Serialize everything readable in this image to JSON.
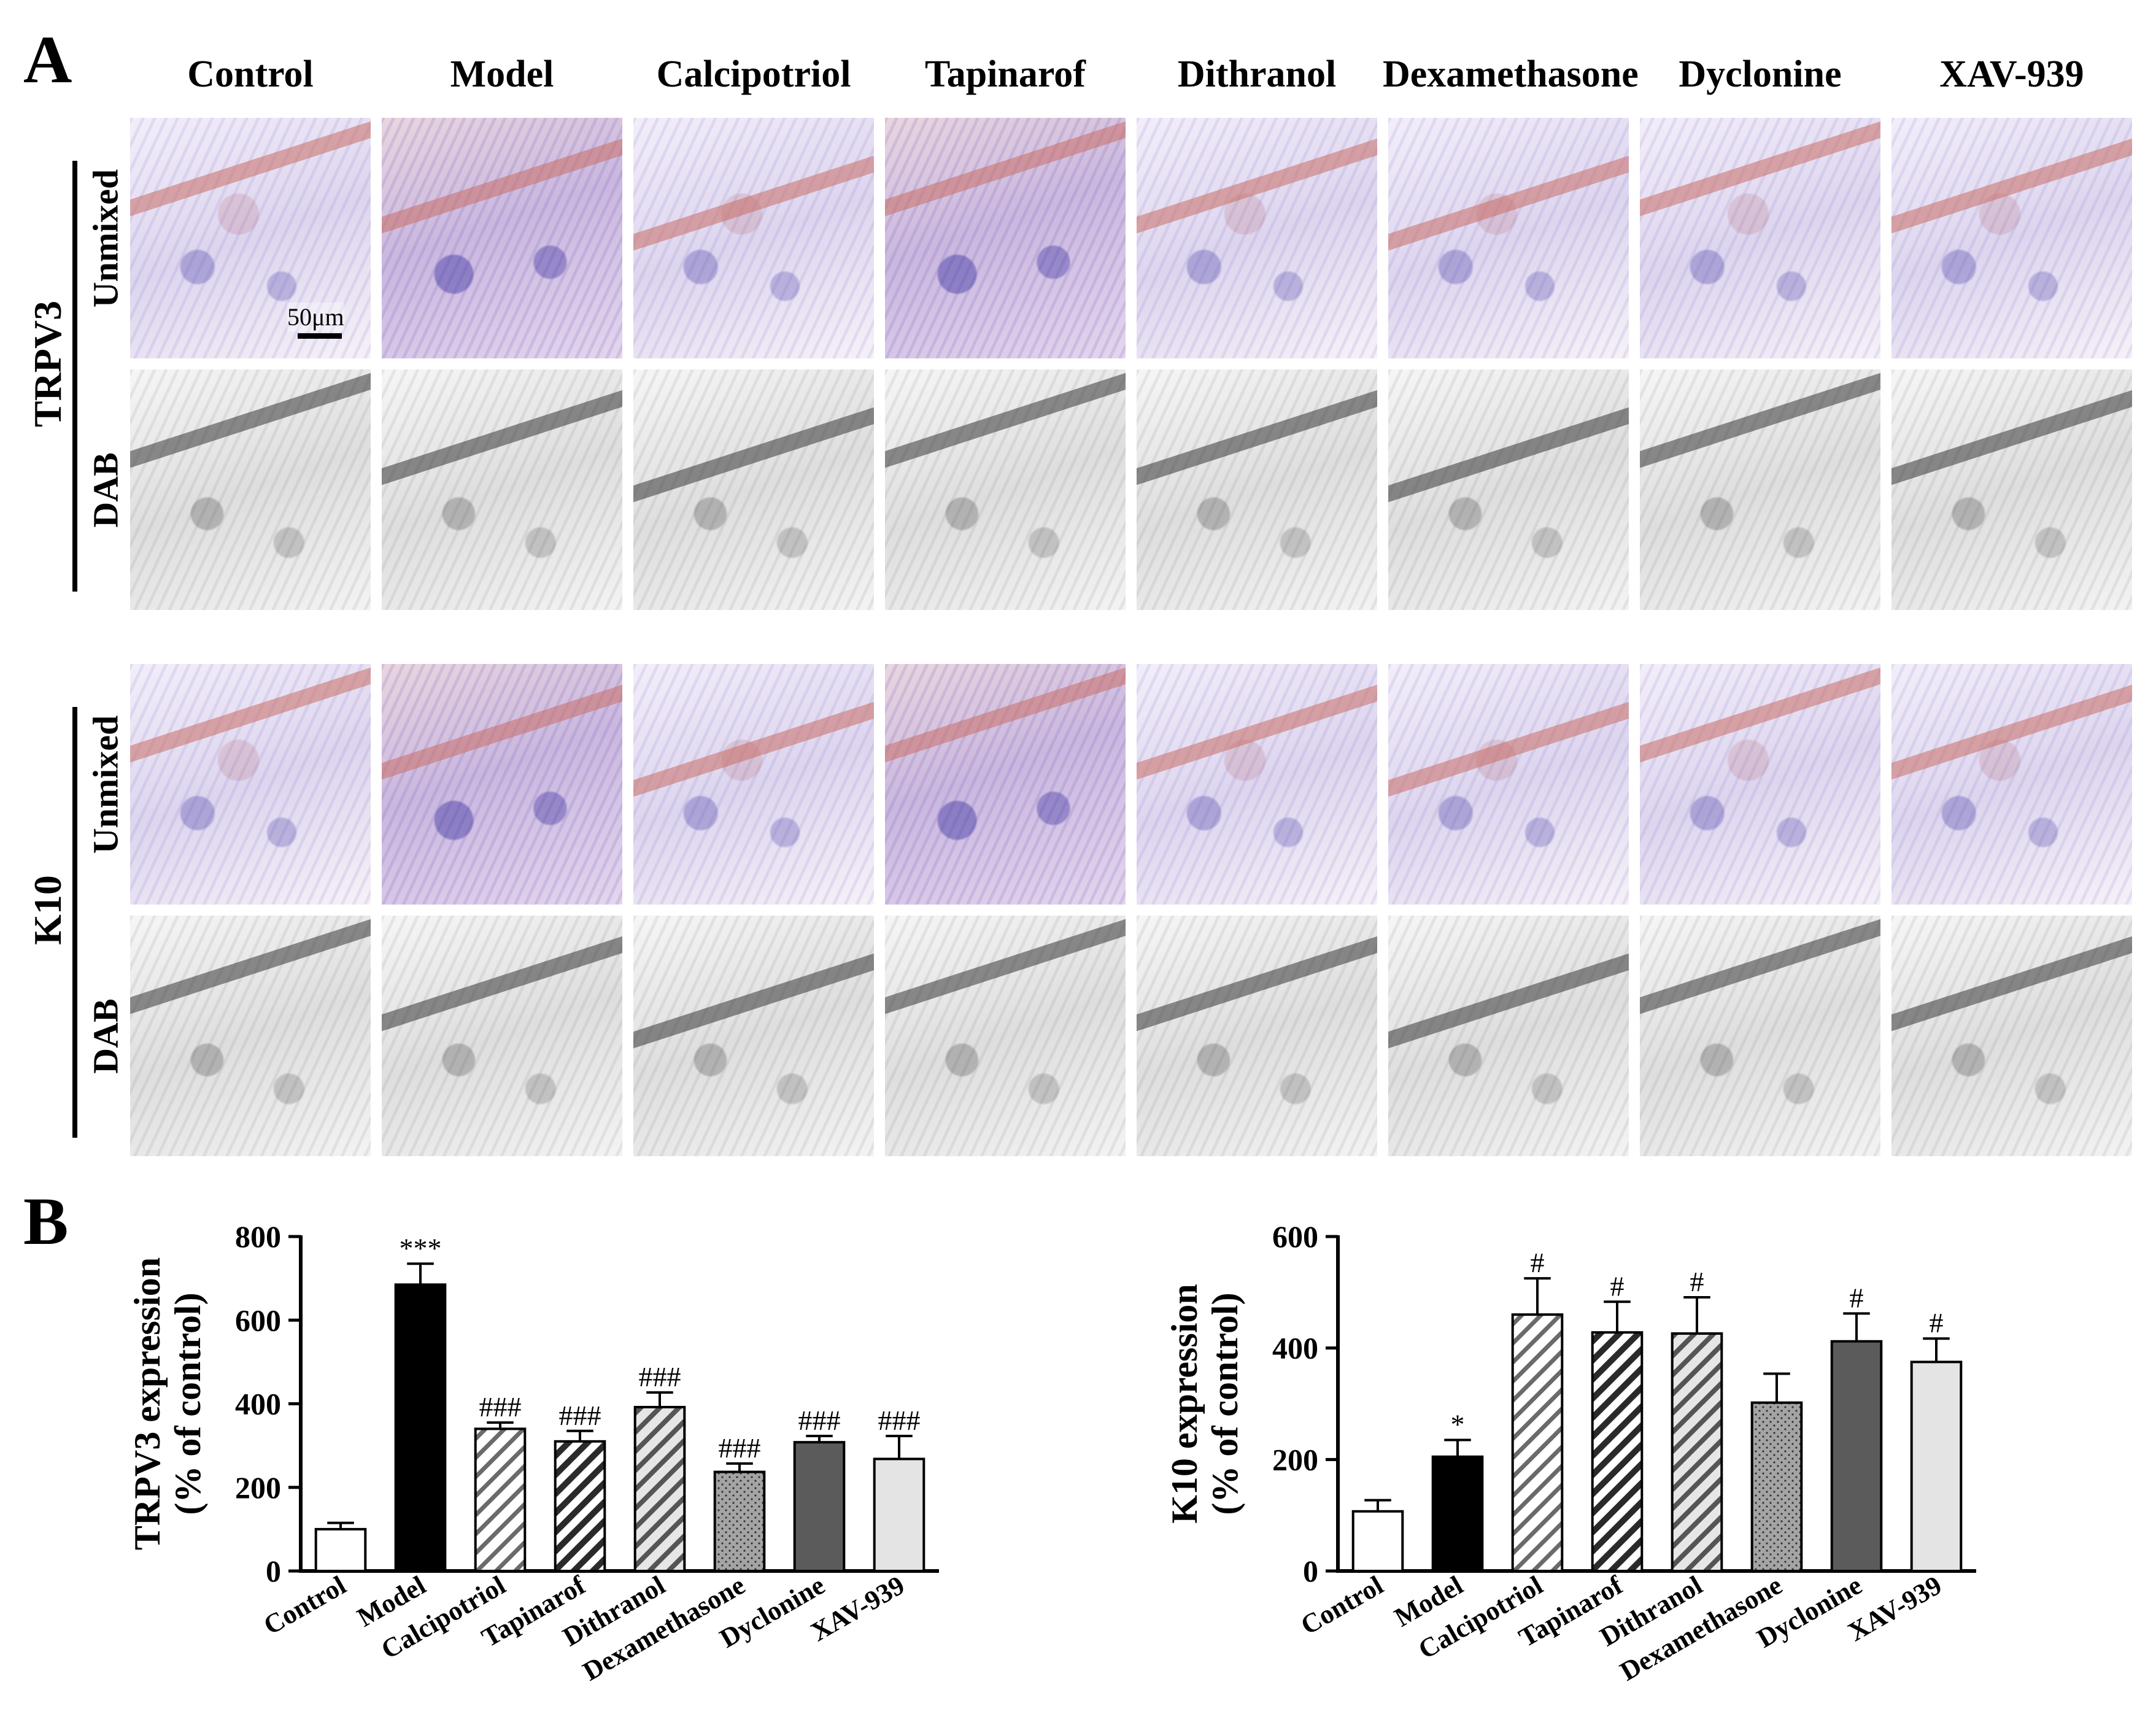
{
  "panel_a": {
    "letter": "A",
    "columns": [
      "Control",
      "Model",
      "Calcipotriol",
      "Tapinarof",
      "Dithranol",
      "Dexamethasone",
      "Dyclonine",
      "XAV-939"
    ],
    "groups": [
      {
        "label": "TRPV3",
        "rows": [
          "Unmixed",
          "DAB"
        ]
      },
      {
        "label": "K10",
        "rows": [
          "Unmixed",
          "DAB"
        ]
      }
    ],
    "scale_bar_label": "50μm"
  },
  "panel_b": {
    "letter": "B"
  },
  "chart_data": [
    {
      "type": "bar",
      "categories": [
        "Control",
        "Model",
        "Calcipotriol",
        "Tapinarof",
        "Dithranol",
        "Dexamethasone",
        "Dyclonine",
        "XAV-939"
      ],
      "values": [
        100,
        685,
        340,
        310,
        392,
        237,
        308,
        268
      ],
      "errors": [
        15,
        50,
        15,
        25,
        35,
        20,
        15,
        55
      ],
      "annotations": [
        "",
        "***",
        "###",
        "###",
        "###",
        "###",
        "###",
        "###"
      ],
      "patterns": [
        "white",
        "black",
        "diag-light",
        "diag-dark",
        "diag-medium",
        "dots",
        "darkgray",
        "lightgray"
      ],
      "ylabel_line1": "TRPV3 expression",
      "ylabel_line2": "(% of control)",
      "xlabel": "",
      "ylim": [
        0,
        800
      ],
      "yticks": [
        0,
        200,
        400,
        600,
        800
      ],
      "grid": false
    },
    {
      "type": "bar",
      "categories": [
        "Control",
        "Model",
        "Calcipotriol",
        "Tapinarof",
        "Dithranol",
        "Dexamethasone",
        "Dyclonine",
        "XAV-939"
      ],
      "values": [
        107,
        205,
        460,
        428,
        426,
        302,
        412,
        375
      ],
      "errors": [
        20,
        30,
        65,
        55,
        65,
        52,
        50,
        42
      ],
      "annotations": [
        "",
        "*",
        "#",
        "#",
        "#",
        "",
        "#",
        "#"
      ],
      "patterns": [
        "white",
        "black",
        "diag-light",
        "diag-dark",
        "diag-medium",
        "dots",
        "darkgray",
        "lightgray"
      ],
      "ylabel_line1": "K10 expression",
      "ylabel_line2": "(% of control)",
      "xlabel": "",
      "ylim": [
        0,
        600
      ],
      "yticks": [
        0,
        200,
        400,
        600
      ],
      "grid": false
    }
  ]
}
